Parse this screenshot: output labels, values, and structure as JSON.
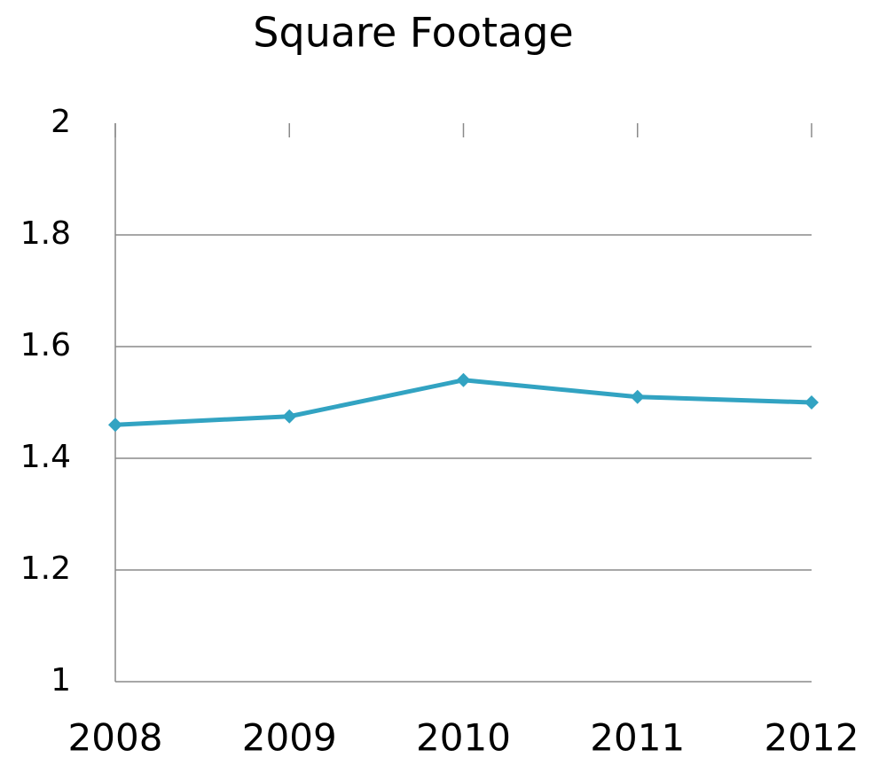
{
  "chart_data": {
    "type": "line",
    "title": "Square Footage",
    "categories": [
      "2008",
      "2009",
      "2010",
      "2011",
      "2012"
    ],
    "series": [
      {
        "name": "Square Footage",
        "color": "#32a3c2",
        "values": [
          1.46,
          1.475,
          1.54,
          1.51,
          1.5
        ]
      }
    ],
    "ylim": [
      1,
      2
    ],
    "yticks": [
      1,
      1.2,
      1.4,
      1.6,
      1.8,
      2
    ],
    "grid": true
  }
}
